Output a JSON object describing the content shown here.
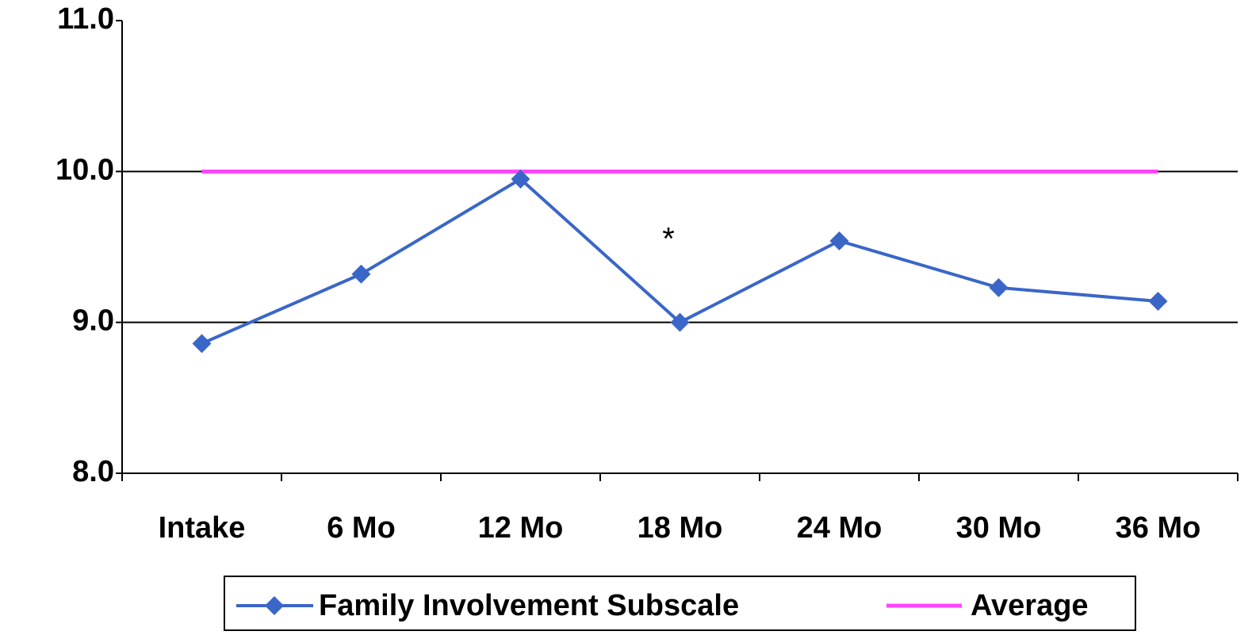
{
  "chart_data": {
    "type": "line",
    "categories": [
      "Intake",
      "6 Mo",
      "12 Mo",
      "18 Mo",
      "24 Mo",
      "30 Mo",
      "36 Mo"
    ],
    "series": [
      {
        "name": "Family Involvement Subscale",
        "color": "#3a66c8",
        "marker": "diamond",
        "values": [
          8.86,
          9.32,
          9.95,
          9.0,
          9.54,
          9.23,
          9.14
        ]
      },
      {
        "name": "Average",
        "color": "#ff44ff",
        "marker": "none",
        "values": [
          10,
          10,
          10,
          10,
          10,
          10,
          10
        ]
      }
    ],
    "annotation": "*",
    "ylim": [
      8,
      11
    ],
    "yticks": [
      {
        "value": 8,
        "label": "8.0"
      },
      {
        "value": 9,
        "label": "9.0"
      },
      {
        "value": 10,
        "label": "10.0"
      },
      {
        "value": 11,
        "label": "11.0"
      }
    ],
    "grid": true,
    "legend": "bottom"
  }
}
